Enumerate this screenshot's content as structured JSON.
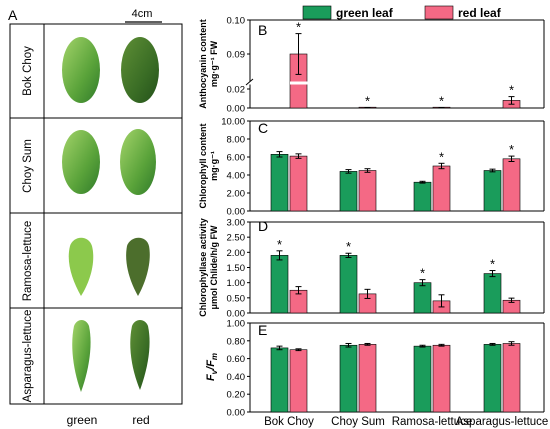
{
  "figure": {
    "panel_a": {
      "label": "A",
      "scale_bar": "4cm",
      "rows": [
        "Bok Choy",
        "Choy Sum",
        "Ramosa-lettuce",
        "Asparagus-lettuce"
      ],
      "columns": [
        "green",
        "red"
      ]
    },
    "legend": {
      "items": [
        {
          "name": "green leaf",
          "color": "#1a9c5b"
        },
        {
          "name": "red leaf",
          "color": "#f46985"
        }
      ]
    },
    "colors": {
      "green": "#1a9c5b",
      "red": "#f46985",
      "leaf_green_light": "#7cc24a",
      "leaf_green_dark": "#2f7a2a"
    }
  },
  "chart_data": [
    {
      "panel": "B",
      "type": "bar",
      "categories": [
        "Bok Choy",
        "Choy Sum",
        "Ramosa-lettuce",
        "Asparagus-lettuce"
      ],
      "series": [
        {
          "name": "green leaf",
          "values": [
            0,
            0,
            0,
            0
          ],
          "errors": [
            0,
            0,
            0,
            0
          ],
          "stars": [
            false,
            false,
            false,
            false
          ]
        },
        {
          "name": "red leaf",
          "values": [
            0.09,
            0.0003,
            0.0002,
            0.008
          ],
          "errors": [
            0.006,
            0.0002,
            0.0001,
            0.004
          ],
          "stars": [
            true,
            true,
            true,
            true
          ]
        }
      ],
      "ylabel_lines": [
        "Anthocyanin content",
        "mg·g⁻¹ FW"
      ],
      "axis_break": true,
      "lower_range": [
        0,
        0.02
      ],
      "upper_range": [
        0.08,
        0.1
      ],
      "yticks": [
        "0.00",
        "0.02",
        "0.09",
        "0.10"
      ]
    },
    {
      "panel": "C",
      "type": "bar",
      "categories": [
        "Bok Choy",
        "Choy Sum",
        "Ramosa-lettuce",
        "Asparagus-lettuce"
      ],
      "series": [
        {
          "name": "green leaf",
          "values": [
            6.3,
            4.4,
            3.2,
            4.5
          ],
          "errors": [
            0.3,
            0.2,
            0.1,
            0.15
          ],
          "stars": [
            false,
            false,
            false,
            false
          ]
        },
        {
          "name": "red leaf",
          "values": [
            6.1,
            4.5,
            5.0,
            5.8
          ],
          "errors": [
            0.25,
            0.2,
            0.3,
            0.3
          ],
          "stars": [
            false,
            false,
            true,
            true
          ]
        }
      ],
      "ylabel_lines": [
        "Chlorophyll content",
        "mg·g⁻¹"
      ],
      "ylim": [
        0,
        10
      ],
      "yticks": [
        "0.00",
        "2.00",
        "4.00",
        "6.00",
        "8.00",
        "10.00"
      ]
    },
    {
      "panel": "D",
      "type": "bar",
      "categories": [
        "Bok Choy",
        "Choy Sum",
        "Ramosa-lettuce",
        "Asparagus-lettuce"
      ],
      "series": [
        {
          "name": "green leaf",
          "values": [
            1.9,
            1.9,
            1.0,
            1.3
          ],
          "errors": [
            0.15,
            0.07,
            0.1,
            0.1
          ],
          "stars": [
            true,
            true,
            true,
            true
          ]
        },
        {
          "name": "red leaf",
          "values": [
            0.75,
            0.63,
            0.4,
            0.42
          ],
          "errors": [
            0.12,
            0.15,
            0.2,
            0.07
          ],
          "stars": [
            false,
            false,
            false,
            false
          ]
        }
      ],
      "ylabel_lines": [
        "Chlorophyllase activity",
        "μmol Chlide/h/g FW"
      ],
      "ylim": [
        0,
        3.0
      ],
      "yticks": [
        "0.00",
        "0.50",
        "1.00",
        "1.50",
        "2.00",
        "2.50",
        "3.00"
      ]
    },
    {
      "panel": "E",
      "type": "bar",
      "categories": [
        "Bok Choy",
        "Choy Sum",
        "Ramosa-lettuce",
        "Asparagus-lettuce"
      ],
      "series": [
        {
          "name": "green leaf",
          "values": [
            0.72,
            0.75,
            0.74,
            0.76
          ],
          "errors": [
            0.02,
            0.02,
            0.01,
            0.01
          ],
          "stars": [
            false,
            false,
            false,
            false
          ]
        },
        {
          "name": "red leaf",
          "values": [
            0.7,
            0.76,
            0.75,
            0.77
          ],
          "errors": [
            0.01,
            0.01,
            0.01,
            0.02
          ],
          "stars": [
            false,
            false,
            false,
            false
          ]
        }
      ],
      "ylabel_main": "F",
      "ylabel_sub1": "v",
      "ylabel_sep": "/F",
      "ylabel_sub2": "m",
      "ylim": [
        0,
        1.0
      ],
      "yticks": [
        "0.00",
        "0.20",
        "0.40",
        "0.60",
        "0.80",
        "1.00"
      ]
    }
  ]
}
